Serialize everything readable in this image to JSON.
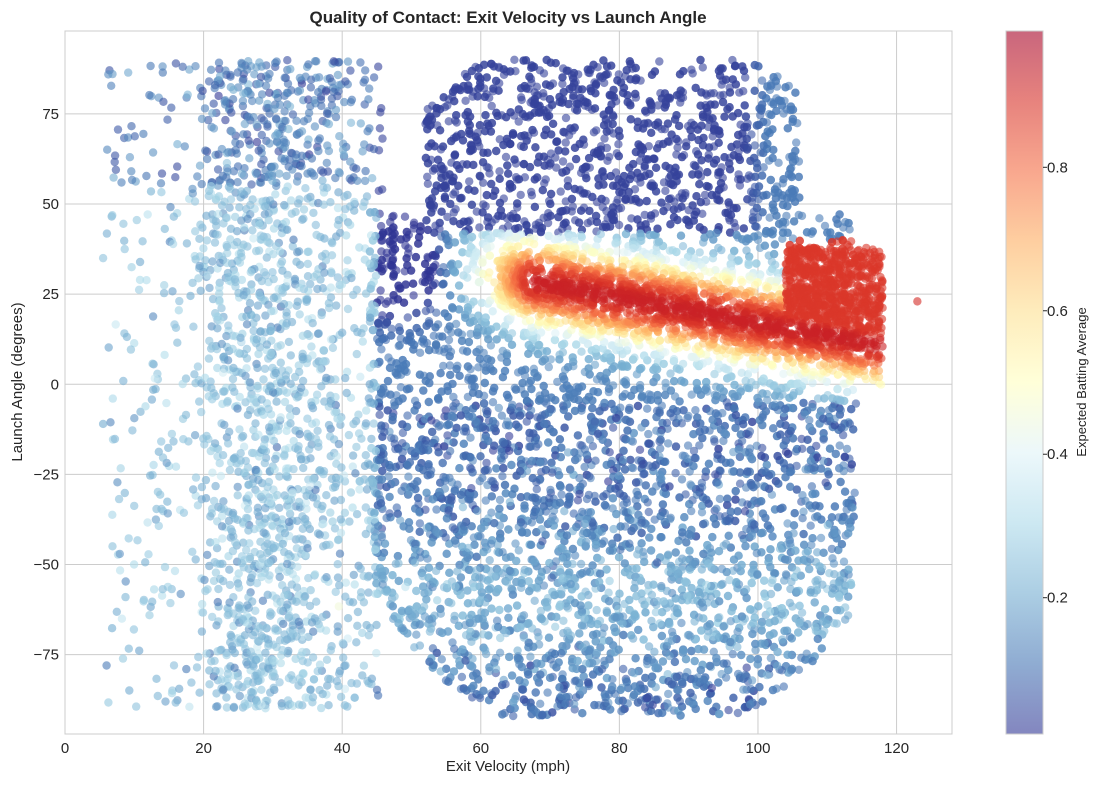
{
  "chart_data": {
    "type": "scatter",
    "title": "Quality of Contact: Exit Velocity vs Launch Angle",
    "xlabel": "Exit Velocity (mph)",
    "ylabel": "Launch Angle (degrees)",
    "xlim": [
      0,
      128
    ],
    "ylim": [
      -97,
      98
    ],
    "xticks": [
      0,
      20,
      40,
      60,
      80,
      100,
      120
    ],
    "yticks": [
      -75,
      -50,
      -25,
      0,
      25,
      50,
      75
    ],
    "grid": true,
    "colorbar": {
      "label": "Expected Batting Average",
      "range": [
        0.01,
        0.99
      ],
      "ticks": [
        0.2,
        0.4,
        0.6,
        0.8
      ],
      "colormap": "RdYlBu_r",
      "colors": [
        "#313695",
        "#4575b4",
        "#74add1",
        "#abd9e9",
        "#e0f3f8",
        "#ffffbf",
        "#fee090",
        "#fdae61",
        "#f46d43",
        "#d73027",
        "#a50026"
      ],
      "alpha": 0.6
    },
    "point_count_approx": 30000,
    "regions": [
      {
        "name": "high-angle pop-ups",
        "x_range": [
          50,
          110
        ],
        "y_range": [
          45,
          90
        ],
        "xba": 0.02
      },
      {
        "name": "low-velocity fringe",
        "x_range": [
          5,
          45
        ],
        "y_range": [
          -90,
          90
        ],
        "xba": 0.25
      },
      {
        "name": "ground balls",
        "x_range": [
          45,
          112
        ],
        "y_range": [
          -90,
          -5
        ],
        "xba": 0.15
      },
      {
        "name": "line-drive sweet spot",
        "x_range": [
          63,
          118
        ],
        "y_range": [
          8,
          32
        ],
        "xba": 0.85
      },
      {
        "name": "barrel home-run zone",
        "x_range": [
          104,
          118
        ],
        "y_range": [
          18,
          38
        ],
        "xba": 0.9
      }
    ],
    "outliers": [
      {
        "x": 6,
        "y": -78,
        "xba": 0.12
      },
      {
        "x": 5.5,
        "y": 35,
        "xba": 0.25
      },
      {
        "x": 5.5,
        "y": -11,
        "xba": 0.2
      },
      {
        "x": 123,
        "y": 23,
        "xba": 0.9
      },
      {
        "x": 16,
        "y": 89,
        "xba": 0.05
      },
      {
        "x": 14.5,
        "y": -88,
        "xba": 0.18
      }
    ]
  }
}
